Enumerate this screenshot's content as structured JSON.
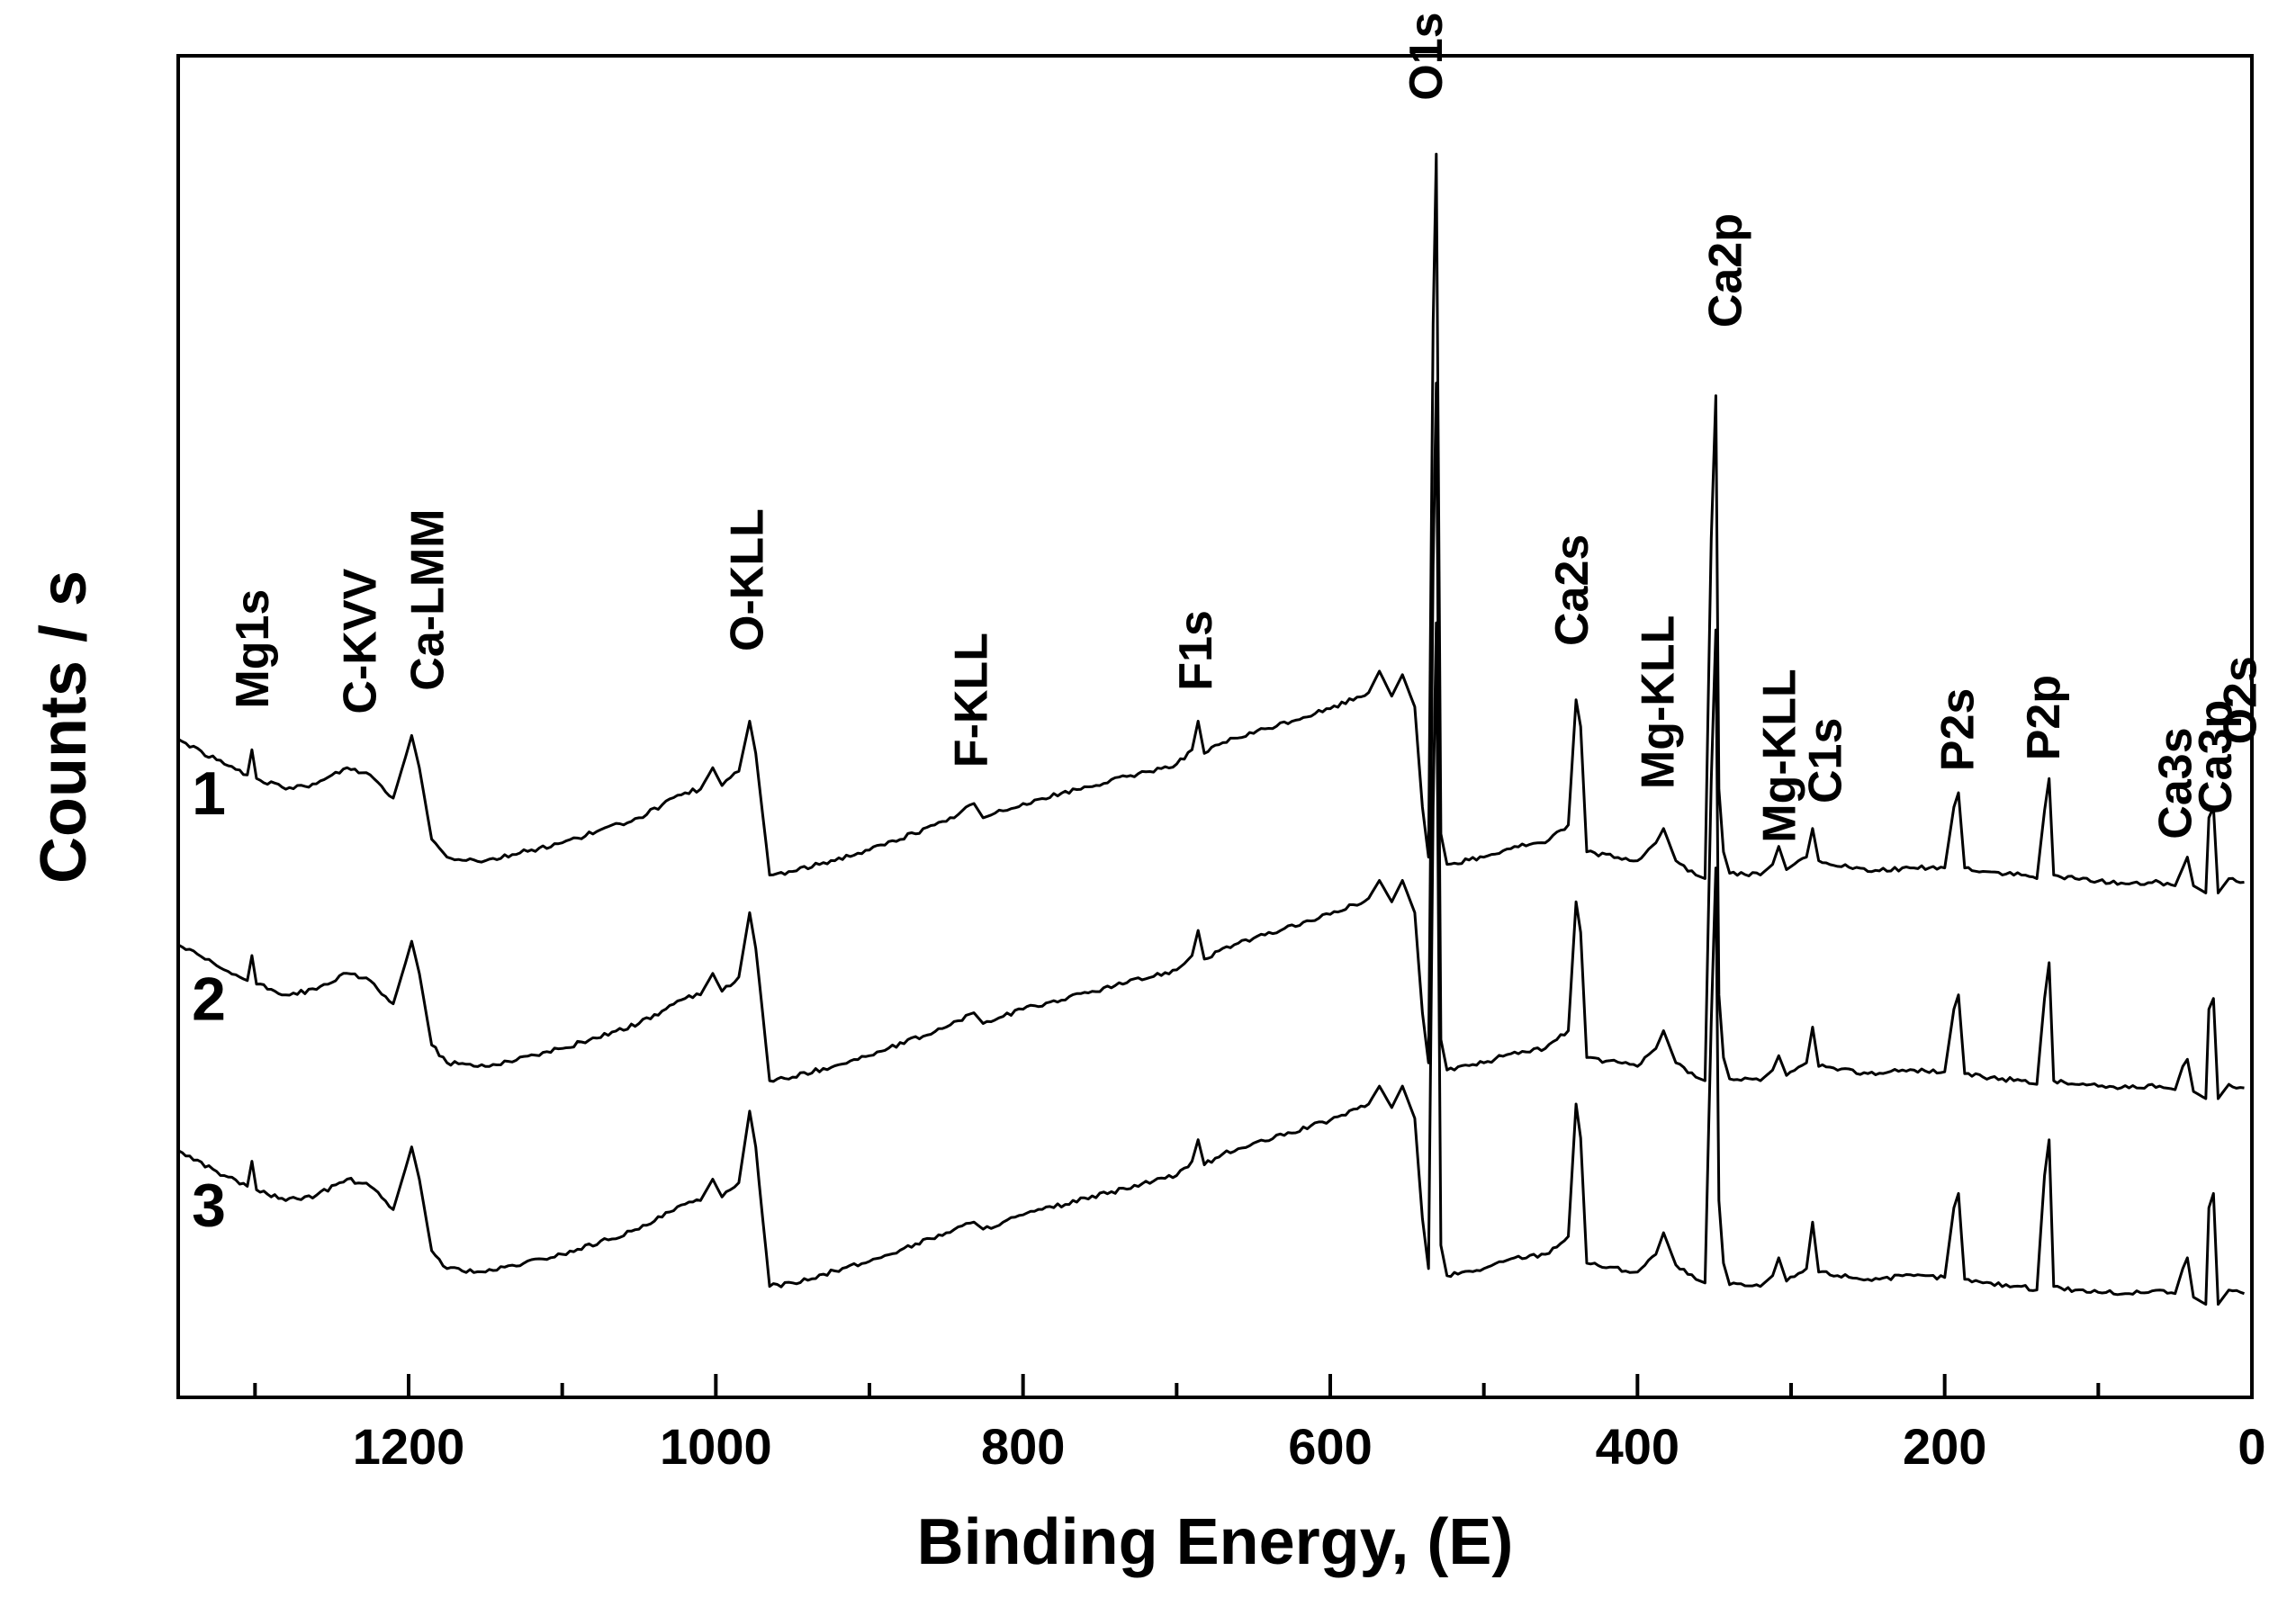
{
  "chart_data": {
    "type": "line",
    "title": "",
    "xlabel": "Binding Energy, (E)",
    "ylabel": "Counts / s",
    "xlim": [
      1350,
      0
    ],
    "x_reversed": true,
    "x_ticks": [
      1200,
      1000,
      800,
      600,
      400,
      200,
      0
    ],
    "y_ticks_shown": false,
    "grid": false,
    "legend": "none",
    "y_units": "arbitrary (stacked spectra, offset)",
    "series": [
      {
        "name": "1",
        "offset": 2.3,
        "points": [
          [
            1350,
            0.88
          ],
          [
            1320,
            0.74
          ],
          [
            1305,
            0.68
          ],
          [
            1302,
            0.82
          ],
          [
            1299,
            0.66
          ],
          [
            1280,
            0.6
          ],
          [
            1260,
            0.63
          ],
          [
            1240,
            0.72
          ],
          [
            1225,
            0.68
          ],
          [
            1210,
            0.55
          ],
          [
            1202,
            0.78
          ],
          [
            1198,
            0.9
          ],
          [
            1193,
            0.72
          ],
          [
            1185,
            0.32
          ],
          [
            1175,
            0.22
          ],
          [
            1150,
            0.2
          ],
          [
            1100,
            0.3
          ],
          [
            1050,
            0.44
          ],
          [
            1020,
            0.58
          ],
          [
            1010,
            0.6
          ],
          [
            1002,
            0.72
          ],
          [
            996,
            0.62
          ],
          [
            985,
            0.7
          ],
          [
            978,
            0.98
          ],
          [
            974,
            0.8
          ],
          [
            965,
            0.12
          ],
          [
            950,
            0.14
          ],
          [
            900,
            0.26
          ],
          [
            850,
            0.42
          ],
          [
            832,
            0.52
          ],
          [
            826,
            0.44
          ],
          [
            800,
            0.52
          ],
          [
            700,
            0.74
          ],
          [
            690,
            0.82
          ],
          [
            686,
            0.98
          ],
          [
            682,
            0.8
          ],
          [
            670,
            0.86
          ],
          [
            600,
            1.05
          ],
          [
            575,
            1.14
          ],
          [
            568,
            1.26
          ],
          [
            560,
            1.12
          ],
          [
            553,
            1.24
          ],
          [
            545,
            1.06
          ],
          [
            540,
            0.5
          ],
          [
            536,
            0.22
          ],
          [
            533,
            3.2
          ],
          [
            531,
            4.15
          ],
          [
            528,
            0.35
          ],
          [
            524,
            0.18
          ],
          [
            500,
            0.22
          ],
          [
            480,
            0.28
          ],
          [
            460,
            0.3
          ],
          [
            445,
            0.4
          ],
          [
            440,
            1.1
          ],
          [
            437,
            0.95
          ],
          [
            433,
            0.25
          ],
          [
            400,
            0.2
          ],
          [
            388,
            0.3
          ],
          [
            383,
            0.38
          ],
          [
            375,
            0.2
          ],
          [
            362,
            0.12
          ],
          [
            356,
            0.1
          ],
          [
            352,
            2.0
          ],
          [
            349,
            2.8
          ],
          [
            347,
            0.6
          ],
          [
            344,
            0.25
          ],
          [
            340,
            0.13
          ],
          [
            320,
            0.12
          ],
          [
            312,
            0.18
          ],
          [
            308,
            0.28
          ],
          [
            303,
            0.15
          ],
          [
            290,
            0.22
          ],
          [
            286,
            0.38
          ],
          [
            282,
            0.2
          ],
          [
            250,
            0.14
          ],
          [
            220,
            0.16
          ],
          [
            200,
            0.16
          ],
          [
            194,
            0.5
          ],
          [
            191,
            0.58
          ],
          [
            187,
            0.16
          ],
          [
            175,
            0.14
          ],
          [
            150,
            0.12
          ],
          [
            140,
            0.1
          ],
          [
            135,
            0.48
          ],
          [
            132,
            0.66
          ],
          [
            129,
            0.12
          ],
          [
            115,
            0.1
          ],
          [
            80,
            0.07
          ],
          [
            60,
            0.08
          ],
          [
            50,
            0.06
          ],
          [
            45,
            0.16
          ],
          [
            42,
            0.22
          ],
          [
            38,
            0.06
          ],
          [
            30,
            0.02
          ],
          [
            28,
            0.44
          ],
          [
            25,
            0.5
          ],
          [
            22,
            0.02
          ],
          [
            15,
            0.1
          ],
          [
            5,
            0.08
          ]
        ]
      },
      {
        "name": "2",
        "offset": 1.15,
        "points": [
          [
            1350,
            0.88
          ],
          [
            1320,
            0.74
          ],
          [
            1305,
            0.68
          ],
          [
            1302,
            0.82
          ],
          [
            1299,
            0.66
          ],
          [
            1280,
            0.6
          ],
          [
            1260,
            0.63
          ],
          [
            1240,
            0.72
          ],
          [
            1225,
            0.68
          ],
          [
            1210,
            0.55
          ],
          [
            1202,
            0.78
          ],
          [
            1198,
            0.9
          ],
          [
            1193,
            0.72
          ],
          [
            1185,
            0.32
          ],
          [
            1175,
            0.22
          ],
          [
            1150,
            0.2
          ],
          [
            1100,
            0.3
          ],
          [
            1050,
            0.44
          ],
          [
            1020,
            0.58
          ],
          [
            1010,
            0.6
          ],
          [
            1002,
            0.72
          ],
          [
            996,
            0.62
          ],
          [
            985,
            0.7
          ],
          [
            978,
            1.06
          ],
          [
            974,
            0.86
          ],
          [
            965,
            0.12
          ],
          [
            950,
            0.14
          ],
          [
            900,
            0.26
          ],
          [
            850,
            0.42
          ],
          [
            832,
            0.5
          ],
          [
            826,
            0.44
          ],
          [
            800,
            0.52
          ],
          [
            700,
            0.74
          ],
          [
            690,
            0.82
          ],
          [
            686,
            0.96
          ],
          [
            682,
            0.8
          ],
          [
            670,
            0.86
          ],
          [
            600,
            1.05
          ],
          [
            575,
            1.14
          ],
          [
            568,
            1.24
          ],
          [
            560,
            1.12
          ],
          [
            553,
            1.24
          ],
          [
            545,
            1.06
          ],
          [
            540,
            0.5
          ],
          [
            536,
            0.22
          ],
          [
            533,
            3.0
          ],
          [
            531,
            4.02
          ],
          [
            528,
            0.35
          ],
          [
            524,
            0.18
          ],
          [
            500,
            0.22
          ],
          [
            480,
            0.28
          ],
          [
            460,
            0.3
          ],
          [
            445,
            0.4
          ],
          [
            440,
            1.12
          ],
          [
            437,
            0.95
          ],
          [
            433,
            0.25
          ],
          [
            400,
            0.2
          ],
          [
            388,
            0.3
          ],
          [
            383,
            0.4
          ],
          [
            375,
            0.22
          ],
          [
            362,
            0.14
          ],
          [
            356,
            0.12
          ],
          [
            352,
            1.8
          ],
          [
            349,
            2.64
          ],
          [
            347,
            0.6
          ],
          [
            344,
            0.25
          ],
          [
            340,
            0.13
          ],
          [
            320,
            0.12
          ],
          [
            312,
            0.18
          ],
          [
            308,
            0.26
          ],
          [
            303,
            0.15
          ],
          [
            290,
            0.22
          ],
          [
            286,
            0.42
          ],
          [
            282,
            0.2
          ],
          [
            250,
            0.16
          ],
          [
            220,
            0.18
          ],
          [
            200,
            0.17
          ],
          [
            194,
            0.52
          ],
          [
            191,
            0.6
          ],
          [
            187,
            0.16
          ],
          [
            175,
            0.14
          ],
          [
            150,
            0.12
          ],
          [
            140,
            0.1
          ],
          [
            135,
            0.58
          ],
          [
            132,
            0.78
          ],
          [
            129,
            0.12
          ],
          [
            115,
            0.1
          ],
          [
            80,
            0.08
          ],
          [
            60,
            0.09
          ],
          [
            50,
            0.07
          ],
          [
            45,
            0.2
          ],
          [
            42,
            0.24
          ],
          [
            38,
            0.06
          ],
          [
            30,
            0.02
          ],
          [
            28,
            0.52
          ],
          [
            25,
            0.58
          ],
          [
            22,
            0.02
          ],
          [
            15,
            0.1
          ],
          [
            5,
            0.08
          ]
        ]
      },
      {
        "name": "3",
        "offset": 0.0,
        "points": [
          [
            1350,
            0.88
          ],
          [
            1320,
            0.74
          ],
          [
            1305,
            0.68
          ],
          [
            1302,
            0.82
          ],
          [
            1299,
            0.66
          ],
          [
            1280,
            0.6
          ],
          [
            1260,
            0.63
          ],
          [
            1240,
            0.72
          ],
          [
            1225,
            0.68
          ],
          [
            1210,
            0.55
          ],
          [
            1202,
            0.78
          ],
          [
            1198,
            0.9
          ],
          [
            1193,
            0.72
          ],
          [
            1185,
            0.32
          ],
          [
            1175,
            0.22
          ],
          [
            1150,
            0.2
          ],
          [
            1100,
            0.3
          ],
          [
            1050,
            0.44
          ],
          [
            1020,
            0.58
          ],
          [
            1010,
            0.6
          ],
          [
            1002,
            0.72
          ],
          [
            996,
            0.62
          ],
          [
            985,
            0.7
          ],
          [
            978,
            1.1
          ],
          [
            974,
            0.9
          ],
          [
            965,
            0.12
          ],
          [
            950,
            0.14
          ],
          [
            900,
            0.26
          ],
          [
            850,
            0.42
          ],
          [
            832,
            0.48
          ],
          [
            826,
            0.44
          ],
          [
            800,
            0.52
          ],
          [
            700,
            0.74
          ],
          [
            690,
            0.82
          ],
          [
            686,
            0.94
          ],
          [
            682,
            0.8
          ],
          [
            670,
            0.86
          ],
          [
            600,
            1.05
          ],
          [
            575,
            1.14
          ],
          [
            568,
            1.24
          ],
          [
            560,
            1.12
          ],
          [
            553,
            1.24
          ],
          [
            545,
            1.06
          ],
          [
            540,
            0.5
          ],
          [
            536,
            0.22
          ],
          [
            533,
            2.8
          ],
          [
            531,
            3.83
          ],
          [
            528,
            0.35
          ],
          [
            524,
            0.18
          ],
          [
            500,
            0.22
          ],
          [
            480,
            0.28
          ],
          [
            460,
            0.3
          ],
          [
            445,
            0.4
          ],
          [
            440,
            1.14
          ],
          [
            437,
            0.95
          ],
          [
            433,
            0.25
          ],
          [
            400,
            0.2
          ],
          [
            388,
            0.3
          ],
          [
            383,
            0.42
          ],
          [
            375,
            0.24
          ],
          [
            362,
            0.16
          ],
          [
            356,
            0.14
          ],
          [
            352,
            1.6
          ],
          [
            349,
            2.46
          ],
          [
            347,
            0.6
          ],
          [
            344,
            0.25
          ],
          [
            340,
            0.13
          ],
          [
            320,
            0.12
          ],
          [
            312,
            0.18
          ],
          [
            308,
            0.28
          ],
          [
            303,
            0.15
          ],
          [
            290,
            0.22
          ],
          [
            286,
            0.48
          ],
          [
            282,
            0.2
          ],
          [
            250,
            0.16
          ],
          [
            220,
            0.18
          ],
          [
            200,
            0.17
          ],
          [
            194,
            0.56
          ],
          [
            191,
            0.64
          ],
          [
            187,
            0.16
          ],
          [
            175,
            0.14
          ],
          [
            150,
            0.12
          ],
          [
            140,
            0.1
          ],
          [
            135,
            0.74
          ],
          [
            132,
            0.94
          ],
          [
            129,
            0.12
          ],
          [
            115,
            0.1
          ],
          [
            80,
            0.08
          ],
          [
            60,
            0.1
          ],
          [
            50,
            0.08
          ],
          [
            45,
            0.22
          ],
          [
            42,
            0.28
          ],
          [
            38,
            0.06
          ],
          [
            30,
            0.02
          ],
          [
            28,
            0.56
          ],
          [
            25,
            0.64
          ],
          [
            22,
            0.02
          ],
          [
            15,
            0.1
          ],
          [
            5,
            0.08
          ]
        ]
      }
    ],
    "annotations": [
      {
        "text": "Mg1s",
        "x": 1302,
        "y": 3.35
      },
      {
        "text": "C-KVV",
        "x": 1232,
        "y": 3.32
      },
      {
        "text": "Ca-LMM",
        "x": 1188,
        "y": 3.45
      },
      {
        "text": "O-KLL",
        "x": 980,
        "y": 3.67
      },
      {
        "text": "F-KLL",
        "x": 834,
        "y": 3.02
      },
      {
        "text": "F1s",
        "x": 688,
        "y": 3.45
      },
      {
        "text": "O1s",
        "x": 538,
        "y": 6.75
      },
      {
        "text": "Ca2s",
        "x": 443,
        "y": 3.7
      },
      {
        "text": "Ca2p",
        "x": 343,
        "y": 5.48
      },
      {
        "text": "Mg-KLL",
        "x": 387,
        "y": 2.9
      },
      {
        "text": "Mg-KLL",
        "x": 308,
        "y": 2.6
      },
      {
        "text": "C1s",
        "x": 278,
        "y": 2.82
      },
      {
        "text": "P2s",
        "x": 192,
        "y": 3.0
      },
      {
        "text": "P2p",
        "x": 136,
        "y": 3.06
      },
      {
        "text": "Ca3s",
        "x": 50,
        "y": 2.62
      },
      {
        "text": "Ca3p",
        "x": 24,
        "y": 2.76
      },
      {
        "text": "O2s",
        "x": 8,
        "y": 3.15
      }
    ]
  }
}
